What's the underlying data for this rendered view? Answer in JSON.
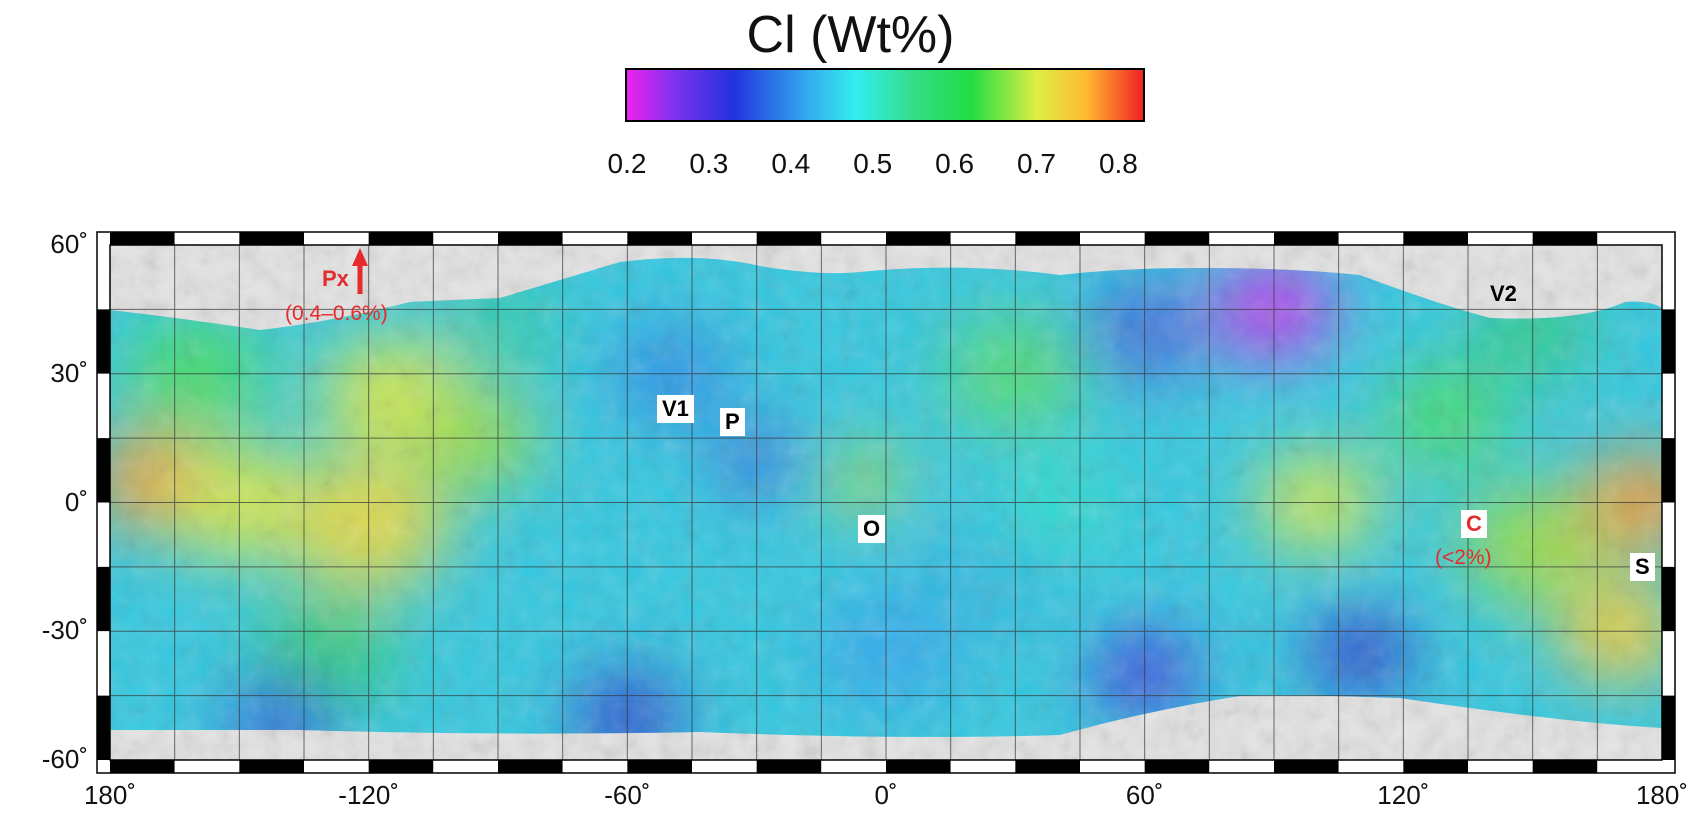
{
  "title": "Cl (Wt%)",
  "colorbar": {
    "min": 0.2,
    "max": 0.83,
    "ticks": [
      "0.2",
      "0.3",
      "0.4",
      "0.5",
      "0.6",
      "0.7",
      "0.8"
    ],
    "stops": [
      {
        "v": 0.2,
        "c": "#ee22ee"
      },
      {
        "v": 0.26,
        "c": "#7a33ee"
      },
      {
        "v": 0.33,
        "c": "#2233dd"
      },
      {
        "v": 0.42,
        "c": "#33aaee"
      },
      {
        "v": 0.48,
        "c": "#33eeee"
      },
      {
        "v": 0.55,
        "c": "#33dd88"
      },
      {
        "v": 0.62,
        "c": "#22dd44"
      },
      {
        "v": 0.7,
        "c": "#ddee44"
      },
      {
        "v": 0.76,
        "c": "#ffbb33"
      },
      {
        "v": 0.83,
        "c": "#ee2222"
      }
    ]
  },
  "map": {
    "lon_range": [
      -180,
      180
    ],
    "lat_range": [
      -60,
      60
    ],
    "lon_labels": [
      "180˚",
      "-120˚",
      "-60˚",
      "0˚",
      "60˚",
      "120˚",
      "180˚"
    ],
    "lat_labels": [
      "60˚",
      "30˚",
      "0˚",
      "-30˚",
      "-60˚"
    ],
    "labels": {
      "px": "Px",
      "px_range": "(0.4–0.6%)",
      "v1": "V1",
      "p": "P",
      "o": "O",
      "v2": "V2",
      "c": "C",
      "c_range": "(<2%)",
      "s": "S"
    }
  }
}
